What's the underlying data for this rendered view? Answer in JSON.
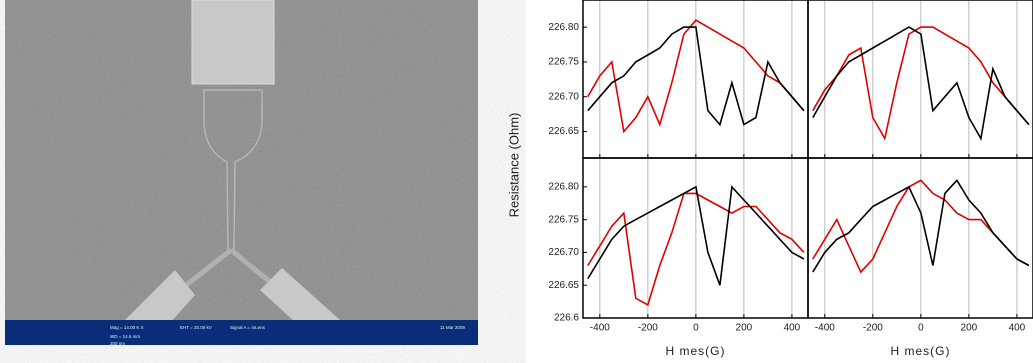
{
  "sem_info": [
    "EHT = 20.00 kV",
    "Signal A = InLens",
    "Mag = 14.00 K X",
    "WD = 14.6 mm",
    "200 nm",
    "11 Mar 2009"
  ],
  "y_label": "Resistance (Ohm)",
  "chart_data": [
    {
      "type": "line",
      "xlim": [
        -470,
        467
      ],
      "ylim": [
        226.612,
        226.839
      ],
      "xticks": [
        -400,
        -200,
        0,
        200,
        400
      ],
      "xtick_labels": false,
      "yticks": [
        226.65,
        {
          "value": 226.7,
          "label": "226.70"
        },
        226.75,
        {
          "value": 226.8,
          "label": "226.80"
        }
      ],
      "x": [
        -450,
        -400,
        -350,
        -300,
        -250,
        -200,
        -150,
        -100,
        -50,
        0,
        50,
        100,
        150,
        200,
        250,
        300,
        350,
        400,
        450
      ],
      "series": [
        {
          "color": "#e00000",
          "values": [
            226.7,
            226.73,
            226.75,
            226.65,
            226.67,
            226.7,
            226.66,
            226.72,
            226.79,
            226.81,
            226.8,
            226.79,
            226.78,
            226.77,
            226.75,
            226.73,
            226.72,
            226.7,
            226.68
          ]
        },
        {
          "color": "#000000",
          "values": [
            226.68,
            226.7,
            226.72,
            226.73,
            226.75,
            226.76,
            226.77,
            226.79,
            226.8,
            226.8,
            226.68,
            226.66,
            226.72,
            226.66,
            226.67,
            226.75,
            226.72,
            226.7,
            226.68
          ]
        }
      ]
    },
    {
      "type": "line",
      "xlim": [
        -470,
        467
      ],
      "ylim": [
        226.612,
        226.839
      ],
      "xticks": [
        -400,
        -200,
        0,
        200,
        400
      ],
      "xtick_labels": false,
      "x": [
        -450,
        -400,
        -350,
        -300,
        -250,
        -200,
        -150,
        -100,
        -50,
        0,
        50,
        100,
        150,
        200,
        250,
        300,
        350,
        400,
        450
      ],
      "series": [
        {
          "color": "#e00000",
          "values": [
            226.68,
            226.71,
            226.73,
            226.76,
            226.77,
            226.67,
            226.64,
            226.72,
            226.79,
            226.8,
            226.8,
            226.79,
            226.78,
            226.77,
            226.75,
            226.72,
            226.7,
            226.68,
            226.66
          ]
        },
        {
          "color": "#000000",
          "values": [
            226.67,
            226.7,
            226.73,
            226.75,
            226.76,
            226.77,
            226.78,
            226.79,
            226.8,
            226.79,
            226.68,
            226.7,
            226.72,
            226.67,
            226.64,
            226.74,
            226.7,
            226.68,
            226.66
          ]
        }
      ]
    },
    {
      "type": "line",
      "xlim": [
        -470,
        467
      ],
      "ylim": [
        226.6,
        226.844
      ],
      "xticks": [
        -400,
        -200,
        0,
        200,
        400
      ],
      "xtick_labels": true,
      "x_label": "H mes(G)",
      "yticks": [
        {
          "value": 226.6,
          "label": "226.6"
        },
        226.65,
        {
          "value": 226.7,
          "label": "226.70"
        },
        226.75,
        {
          "value": 226.8,
          "label": "226.80"
        }
      ],
      "x": [
        -450,
        -400,
        -350,
        -300,
        -250,
        -200,
        -150,
        -100,
        -50,
        0,
        50,
        100,
        150,
        200,
        250,
        300,
        350,
        400,
        450
      ],
      "series": [
        {
          "color": "#e00000",
          "values": [
            226.68,
            226.71,
            226.74,
            226.76,
            226.63,
            226.62,
            226.68,
            226.73,
            226.79,
            226.79,
            226.78,
            226.77,
            226.76,
            226.77,
            226.77,
            226.75,
            226.73,
            226.72,
            226.7
          ]
        },
        {
          "color": "#000000",
          "values": [
            226.66,
            226.69,
            226.72,
            226.74,
            226.75,
            226.76,
            226.77,
            226.78,
            226.79,
            226.8,
            226.7,
            226.65,
            226.8,
            226.78,
            226.76,
            226.74,
            226.72,
            226.7,
            226.69
          ]
        }
      ]
    },
    {
      "type": "line",
      "xlim": [
        -470,
        467
      ],
      "ylim": [
        226.6,
        226.844
      ],
      "xticks": [
        -400,
        -200,
        0,
        200,
        400
      ],
      "xtick_labels": true,
      "x_label": "H mes(G)",
      "x": [
        -450,
        -400,
        -350,
        -300,
        -250,
        -200,
        -150,
        -100,
        -50,
        0,
        50,
        100,
        150,
        200,
        250,
        300,
        350,
        400,
        450
      ],
      "series": [
        {
          "color": "#e00000",
          "values": [
            226.69,
            226.72,
            226.75,
            226.71,
            226.67,
            226.69,
            226.73,
            226.77,
            226.8,
            226.81,
            226.79,
            226.78,
            226.76,
            226.75,
            226.75,
            226.73,
            226.71,
            226.69,
            226.68
          ]
        },
        {
          "color": "#000000",
          "values": [
            226.67,
            226.7,
            226.72,
            226.73,
            226.75,
            226.77,
            226.78,
            226.79,
            226.8,
            226.76,
            226.68,
            226.79,
            226.81,
            226.78,
            226.76,
            226.73,
            226.71,
            226.69,
            226.68
          ]
        }
      ]
    }
  ]
}
